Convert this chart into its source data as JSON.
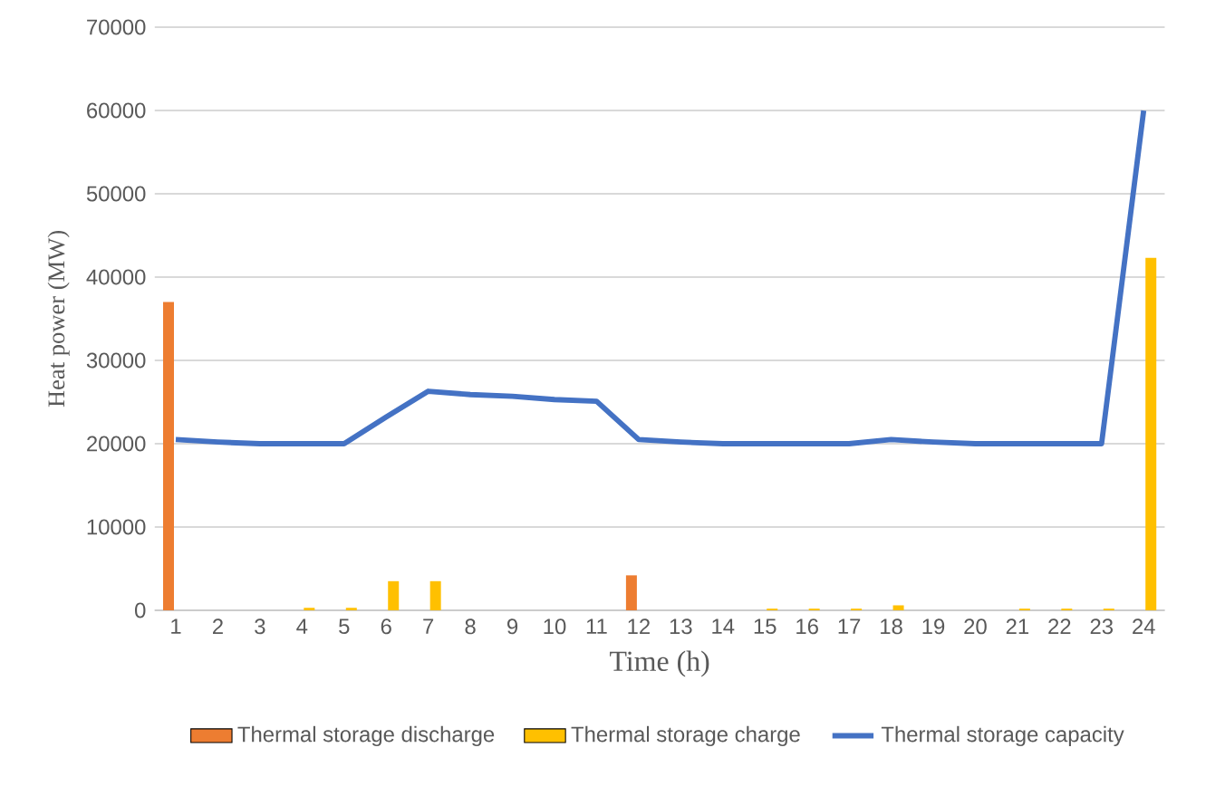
{
  "chart_data": {
    "type": "bar",
    "xlabel": "Time (h)",
    "ylabel": "Heat power (MW)",
    "categories": [
      "1",
      "2",
      "3",
      "4",
      "5",
      "6",
      "7",
      "8",
      "9",
      "10",
      "11",
      "12",
      "13",
      "14",
      "15",
      "16",
      "17",
      "18",
      "19",
      "20",
      "21",
      "22",
      "23",
      "24"
    ],
    "series": [
      {
        "name": "Thermal storage discharge",
        "color": "#ed7d31",
        "values": [
          37000,
          0,
          0,
          0,
          0,
          0,
          0,
          0,
          0,
          0,
          0,
          4200,
          0,
          0,
          0,
          0,
          0,
          0,
          0,
          0,
          0,
          0,
          0,
          0
        ]
      },
      {
        "name": "Thermal storage charge",
        "color": "#ffc000",
        "values": [
          0,
          0,
          0,
          300,
          300,
          3500,
          3500,
          0,
          0,
          0,
          0,
          0,
          0,
          0,
          200,
          200,
          200,
          600,
          0,
          0,
          200,
          200,
          200,
          42300
        ]
      },
      {
        "name": "Thermal storage capacity",
        "type": "line",
        "color": "#4472c4",
        "marker": "none",
        "values": [
          20500,
          20200,
          20000,
          20000,
          20000,
          23200,
          26300,
          25900,
          25700,
          25300,
          25100,
          20500,
          20200,
          20000,
          20000,
          20000,
          20000,
          20500,
          20200,
          20000,
          20000,
          20000,
          20000,
          60000
        ]
      }
    ],
    "ylim": [
      0,
      70000
    ],
    "yticks": [
      0,
      10000,
      20000,
      30000,
      40000,
      50000,
      60000,
      70000
    ],
    "grid": "y",
    "legend": "bottom"
  }
}
